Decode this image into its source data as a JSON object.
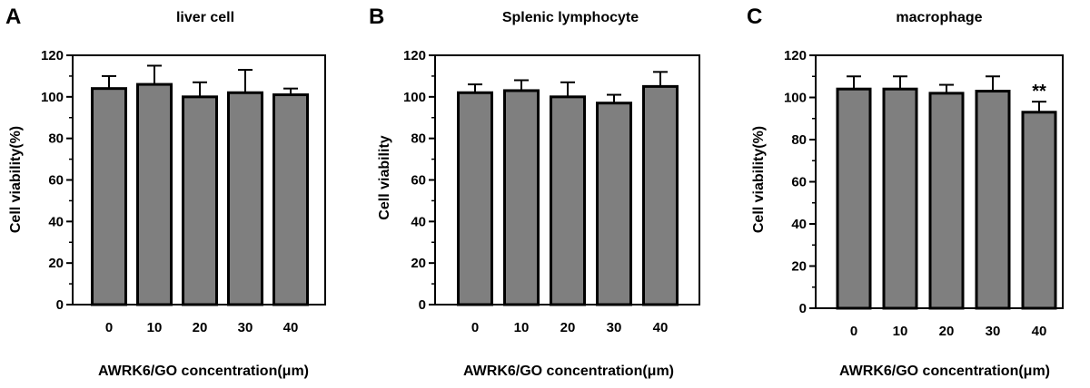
{
  "colors": {
    "bar_fill": "#7f7f7f",
    "stroke": "#000000",
    "background": "#ffffff"
  },
  "chart_data": [
    {
      "type": "bar",
      "panel_label": "A",
      "title": "liver cell",
      "xlabel": "AWRK6/GO concentration(μm)",
      "ylabel": "Cell viability(%)",
      "categories": [
        "0",
        "10",
        "20",
        "30",
        "40"
      ],
      "values": [
        104,
        106,
        100,
        102,
        101
      ],
      "errors": [
        6,
        9,
        7,
        11,
        3
      ],
      "ylim": [
        0,
        120
      ],
      "yticks": [
        "0",
        "20",
        "40",
        "60",
        "80",
        "100",
        "120"
      ],
      "annotations": [],
      "grid": false
    },
    {
      "type": "bar",
      "panel_label": "B",
      "title": "Splenic lymphocyte",
      "xlabel": "AWRK6/GO concentration(μm)",
      "ylabel": "Cell viability",
      "categories": [
        "0",
        "10",
        "20",
        "30",
        "40"
      ],
      "values": [
        102,
        103,
        100,
        97,
        105
      ],
      "errors": [
        4,
        5,
        7,
        4,
        7
      ],
      "ylim": [
        0,
        120
      ],
      "yticks": [
        "0",
        "20",
        "40",
        "60",
        "80",
        "100",
        "120"
      ],
      "annotations": [],
      "grid": false
    },
    {
      "type": "bar",
      "panel_label": "C",
      "title": "macrophage",
      "xlabel": "AWRK6/GO concentration(μm)",
      "ylabel": "Cell viability(%)",
      "categories": [
        "0",
        "10",
        "20",
        "30",
        "40"
      ],
      "values": [
        104,
        104,
        102,
        103,
        93
      ],
      "errors": [
        6,
        6,
        4,
        7,
        5
      ],
      "ylim": [
        0,
        120
      ],
      "yticks": [
        "0",
        "20",
        "40",
        "60",
        "80",
        "100",
        "120"
      ],
      "annotations": [
        {
          "category": "40",
          "text": "**"
        }
      ],
      "grid": false
    }
  ]
}
